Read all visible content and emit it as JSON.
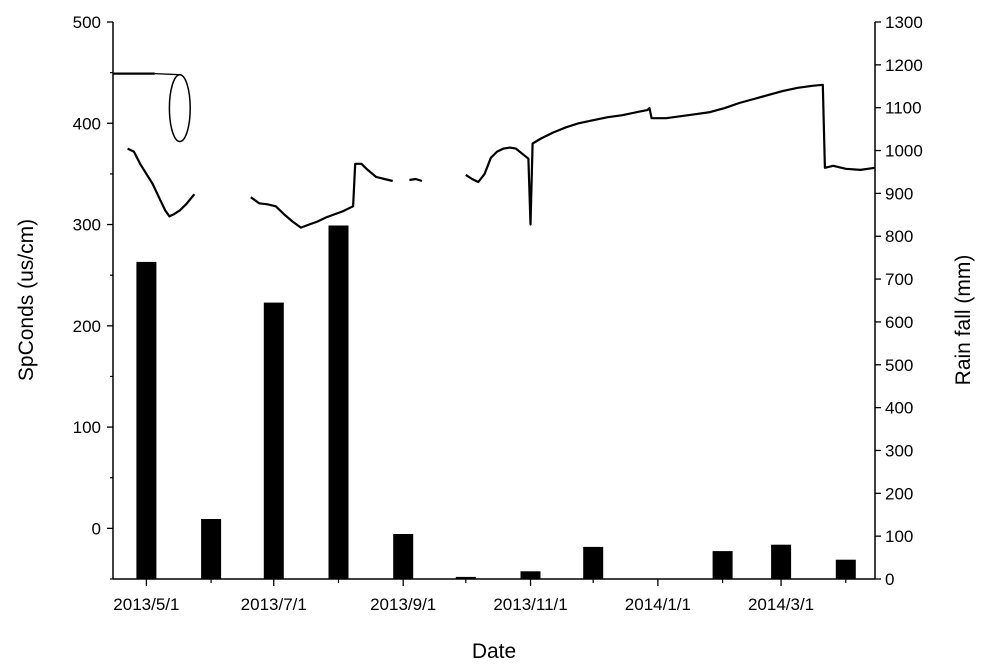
{
  "chart_data": {
    "type": "bar+line",
    "xlabel": "Date",
    "x_ticks": [
      "2013/5/1",
      "2013/7/1",
      "2013/9/1",
      "2013/11/1",
      "2014/1/1",
      "2014/3/1"
    ],
    "x_range": [
      "2013/4/15",
      "2014/4/15"
    ],
    "left_axis": {
      "label": "SpConds (us/cm)",
      "range": [
        -50,
        500
      ],
      "ticks": [
        0,
        100,
        200,
        300,
        400,
        500
      ]
    },
    "right_axis": {
      "label": "Rain fall (mm)",
      "range": [
        0,
        1300
      ],
      "ticks": [
        0,
        100,
        200,
        300,
        400,
        500,
        600,
        700,
        800,
        900,
        1000,
        1100,
        1200,
        1300
      ]
    },
    "series": [
      {
        "type": "bar",
        "axis": "right",
        "bars": [
          {
            "date": "2013/5/1",
            "value": 740
          },
          {
            "date": "2013/6/1",
            "value": 140
          },
          {
            "date": "2013/7/1",
            "value": 645
          },
          {
            "date": "2013/8/1",
            "value": 825
          },
          {
            "date": "2013/9/1",
            "value": 105
          },
          {
            "date": "2013/10/1",
            "value": 5
          },
          {
            "date": "2013/11/1",
            "value": 18
          },
          {
            "date": "2013/12/1",
            "value": 75
          },
          {
            "date": "2014/1/1",
            "value": 0
          },
          {
            "date": "2014/2/1",
            "value": 65
          },
          {
            "date": "2014/3/1",
            "value": 80
          },
          {
            "date": "2014/4/1",
            "value": 45
          }
        ]
      },
      {
        "type": "line",
        "axis": "left",
        "segments": [
          [
            [
              "2013/4/15",
              449
            ],
            [
              "2013/5/5",
              449
            ]
          ],
          [
            [
              "2013/4/22",
              375
            ],
            [
              "2013/4/25",
              372
            ],
            [
              "2013/4/28",
              360
            ],
            [
              "2013/5/1",
              350
            ],
            [
              "2013/5/4",
              340
            ],
            [
              "2013/5/7",
              327
            ],
            [
              "2013/5/10",
              314
            ],
            [
              "2013/5/12",
              308
            ],
            [
              "2013/5/14",
              310
            ],
            [
              "2013/5/17",
              314
            ],
            [
              "2013/5/20",
              320
            ],
            [
              "2013/5/24",
              330
            ]
          ],
          [
            [
              "2013/6/20",
              327
            ],
            [
              "2013/6/24",
              321
            ],
            [
              "2013/6/28",
              320
            ],
            [
              "2013/7/2",
              318
            ],
            [
              "2013/7/6",
              310
            ],
            [
              "2013/7/10",
              303
            ],
            [
              "2013/7/14",
              297
            ],
            [
              "2013/7/18",
              300
            ],
            [
              "2013/7/22",
              303
            ],
            [
              "2013/7/26",
              307
            ],
            [
              "2013/7/30",
              310
            ],
            [
              "2013/8/3",
              313
            ],
            [
              "2013/8/6",
              316
            ],
            [
              "2013/8/8",
              318
            ],
            [
              "2013/8/9",
              360
            ],
            [
              "2013/8/12",
              360
            ],
            [
              "2013/8/15",
              354
            ],
            [
              "2013/8/19",
              347
            ],
            [
              "2013/8/23",
              345
            ],
            [
              "2013/8/27",
              343
            ]
          ],
          [
            [
              "2013/9/4",
              344
            ],
            [
              "2013/9/7",
              345
            ],
            [
              "2013/9/10",
              343
            ]
          ],
          [
            [
              "2013/10/1",
              349
            ],
            [
              "2013/10/4",
              345
            ],
            [
              "2013/10/7",
              342
            ],
            [
              "2013/10/10",
              350
            ],
            [
              "2013/10/13",
              366
            ],
            [
              "2013/10/16",
              372
            ],
            [
              "2013/10/19",
              375
            ],
            [
              "2013/10/22",
              376
            ],
            [
              "2013/10/25",
              375
            ],
            [
              "2013/10/28",
              370
            ],
            [
              "2013/10/31",
              365
            ],
            [
              "2013/11/1",
              300
            ],
            [
              "2013/11/2",
              380
            ],
            [
              "2013/11/6",
              385
            ],
            [
              "2013/11/12",
              391
            ],
            [
              "2013/11/18",
              396
            ],
            [
              "2013/11/24",
              400
            ],
            [
              "2013/12/1",
              403
            ],
            [
              "2013/12/8",
              406
            ],
            [
              "2013/12/15",
              408
            ],
            [
              "2013/12/22",
              411
            ],
            [
              "2013/12/27",
              413
            ],
            [
              "2013/12/28",
              415
            ],
            [
              "2013/12/29",
              405
            ],
            [
              "2014/1/5",
              405
            ],
            [
              "2014/1/12",
              407
            ],
            [
              "2014/1/19",
              409
            ],
            [
              "2014/1/26",
              411
            ],
            [
              "2014/2/2",
              415
            ],
            [
              "2014/2/9",
              420
            ],
            [
              "2014/2/16",
              424
            ],
            [
              "2014/2/23",
              428
            ],
            [
              "2014/3/2",
              432
            ],
            [
              "2014/3/9",
              435
            ],
            [
              "2014/3/16",
              437
            ],
            [
              "2014/3/21",
              438
            ],
            [
              "2014/3/22",
              356
            ],
            [
              "2014/3/26",
              358
            ],
            [
              "2014/4/1",
              355
            ],
            [
              "2014/4/8",
              354
            ],
            [
              "2014/4/15",
              356
            ]
          ]
        ]
      }
    ],
    "annotation": {
      "shape": "ellipse",
      "center": [
        "2013/5/17",
        415
      ],
      "rx_days": 5,
      "ry_value": 33
    },
    "grid": false,
    "legend": "none"
  }
}
